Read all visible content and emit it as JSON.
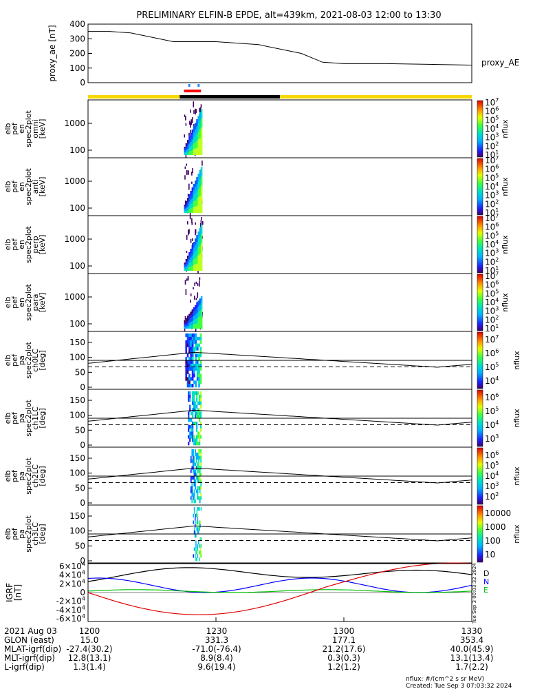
{
  "title": "PRELIMINARY ELFIN-B EPDE, alt=439km, 2021-08-03 12:00 to 13:30",
  "footer": {
    "units": "nflux: #/(cm^2 s sr MeV)",
    "created": "Created: Tue Sep  3 07:03:32 2024",
    "side_stamp": "Tue Sep  3 00:03:32 2024"
  },
  "ephemeris": {
    "date": "2021 Aug 03",
    "time_ticks": [
      "1200",
      "1230",
      "1300",
      "1330"
    ],
    "rows": [
      {
        "label": "GLON (east)",
        "values": [
          "15.0",
          "331.3",
          "177.1",
          "353.4"
        ]
      },
      {
        "label": "MLAT-igrf(dip)",
        "values": [
          "-27.4(30.2)",
          "-71.0(-76.4)",
          "21.2(17.6)",
          "40.0(45.9)"
        ]
      },
      {
        "label": "MLT-igrf(dip)",
        "values": [
          "12.8(13.1)",
          "8.9(8.4)",
          "0.3(0.3)",
          "13.1(13.4)"
        ]
      },
      {
        "label": "L-igrf(dip)",
        "values": [
          "1.3(1.4)",
          "9.6(19.4)",
          "1.2(1.2)",
          "1.7(2.2)"
        ]
      }
    ]
  },
  "colors": {
    "bar_yellow": "#f5d800",
    "bar_black": "#000000",
    "bar_red": "#ff0000",
    "bar_blue": "#1e90ff",
    "igrf_d": "#000000",
    "igrf_n": "#0000ff",
    "igrf_e": "#00c000",
    "igrf_red": "#e00000"
  },
  "chart_data": [
    {
      "type": "line",
      "title": "proxy_ae",
      "ylabel": "proxy_ae [nT]",
      "legend": "proxy_AE",
      "ylim": [
        0,
        400
      ],
      "yticks": [
        "0",
        "100",
        "200",
        "300",
        "400"
      ],
      "x_minutes": [
        0,
        5,
        10,
        20,
        25,
        30,
        40,
        50,
        55,
        60,
        70,
        80,
        90
      ],
      "values": [
        350,
        350,
        340,
        280,
        280,
        280,
        260,
        200,
        140,
        130,
        130,
        125,
        120
      ]
    },
    {
      "type": "heatmap",
      "ylabel": [
        "elb",
        "pef",
        "en",
        "spec2plot",
        "omni",
        "[keV]"
      ],
      "colorbar_label": "nflux",
      "yticks": [
        "100",
        "1000"
      ],
      "cbar_ticks": [
        "10^1",
        "10^2",
        "10^3",
        "10^4",
        "10^5",
        "10^6",
        "10^7"
      ]
    },
    {
      "type": "heatmap",
      "ylabel": [
        "elb",
        "pef",
        "en",
        "spec2plot",
        "anti",
        "[keV]"
      ],
      "colorbar_label": "nflux",
      "yticks": [
        "100",
        "1000"
      ],
      "cbar_ticks": [
        "10^1",
        "10^2",
        "10^3",
        "10^4",
        "10^5",
        "10^6",
        "10^7"
      ]
    },
    {
      "type": "heatmap",
      "ylabel": [
        "elb",
        "pef",
        "en",
        "spec2plot",
        "perp",
        "[keV]"
      ],
      "colorbar_label": "nflux",
      "yticks": [
        "100",
        "1000"
      ],
      "cbar_ticks": [
        "10^1",
        "10^2",
        "10^3",
        "10^4",
        "10^5",
        "10^6",
        "10^7"
      ]
    },
    {
      "type": "heatmap",
      "ylabel": [
        "elb",
        "pef",
        "en",
        "spec2plot",
        "para",
        "[keV]"
      ],
      "colorbar_label": "nflux",
      "yticks": [
        "100",
        "1000"
      ],
      "cbar_ticks": [
        "10^1",
        "10^2",
        "10^3",
        "10^4",
        "10^5",
        "10^6",
        "10^7"
      ]
    },
    {
      "type": "heatmap",
      "ylabel": [
        "elb",
        "pef",
        "pa",
        "spec2plot",
        "ch0LC",
        "[deg]"
      ],
      "colorbar_label": "nflux",
      "yticks": [
        "0",
        "50",
        "100",
        "150"
      ],
      "cbar_ticks": [
        "10^4",
        "10^5",
        "10^6",
        "10^7"
      ]
    },
    {
      "type": "heatmap",
      "ylabel": [
        "elb",
        "pef",
        "pa",
        "spec2plot",
        "ch1LC",
        "[deg]"
      ],
      "colorbar_label": "nflux",
      "yticks": [
        "0",
        "50",
        "100",
        "150"
      ],
      "cbar_ticks": [
        "10^3",
        "10^4",
        "10^5",
        "10^6"
      ]
    },
    {
      "type": "heatmap",
      "ylabel": [
        "elb",
        "pef",
        "pa",
        "spec2plot",
        "ch2LC",
        "[deg]"
      ],
      "colorbar_label": "nflux",
      "yticks": [
        "0",
        "50",
        "100",
        "150"
      ],
      "cbar_ticks": [
        "10^2",
        "10^3",
        "10^4",
        "10^5",
        "10^6"
      ]
    },
    {
      "type": "heatmap",
      "ylabel": [
        "elb",
        "pef",
        "pa",
        "spec2plot",
        "ch3LC",
        "[deg]"
      ],
      "colorbar_label": "nflux",
      "yticks": [
        "0",
        "50",
        "100",
        "150"
      ],
      "cbar_ticks": [
        "10",
        "100",
        "1000",
        "10000"
      ]
    },
    {
      "type": "line",
      "ylabel": [
        "IGRF",
        "[nT]"
      ],
      "yticks": [
        "-6×10^4",
        "-4×10^4",
        "-2×10^4",
        "0",
        "2×10^4",
        "4×10^4",
        "6×10^4"
      ],
      "ylim": [
        -60000,
        60000
      ],
      "series_labels": [
        "D",
        "N",
        "E"
      ]
    }
  ]
}
